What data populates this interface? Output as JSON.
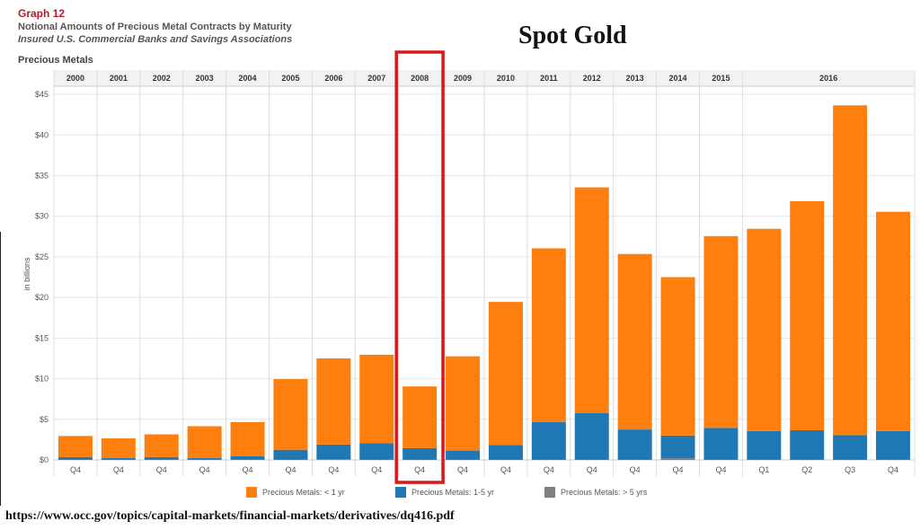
{
  "header": {
    "graph_label": "Graph 12",
    "title": "Notional Amounts of Precious Metal Contracts by Maturity",
    "subtitle": "Insured U.S. Commercial Banks and Savings Associations",
    "section_label": "Precious Metals",
    "overlay_title": "Spot Gold"
  },
  "footer": {
    "source_url": "https://www.occ.gov/topics/capital-markets/financial-markets/derivatives/dq416.pdf"
  },
  "chart_data": {
    "type": "bar",
    "stacked": true,
    "ylabel": "in billions",
    "ylim": [
      0,
      46
    ],
    "yticks": [
      "$0",
      "$5",
      "$10",
      "$15",
      "$20",
      "$25",
      "$30",
      "$35",
      "$40",
      "$45"
    ],
    "ytick_values": [
      0,
      5,
      10,
      15,
      20,
      25,
      30,
      35,
      40,
      45
    ],
    "grid": true,
    "legend_position": "bottom",
    "year_groups": [
      {
        "label": "2000",
        "span": 1
      },
      {
        "label": "2001",
        "span": 1
      },
      {
        "label": "2002",
        "span": 1
      },
      {
        "label": "2003",
        "span": 1
      },
      {
        "label": "2004",
        "span": 1
      },
      {
        "label": "2005",
        "span": 1
      },
      {
        "label": "2006",
        "span": 1
      },
      {
        "label": "2007",
        "span": 1
      },
      {
        "label": "2008",
        "span": 1
      },
      {
        "label": "2009",
        "span": 1
      },
      {
        "label": "2010",
        "span": 1
      },
      {
        "label": "2011",
        "span": 1
      },
      {
        "label": "2012",
        "span": 1
      },
      {
        "label": "2013",
        "span": 1
      },
      {
        "label": "2014",
        "span": 1
      },
      {
        "label": "2015",
        "span": 1
      },
      {
        "label": "2016",
        "span": 4
      }
    ],
    "categories": [
      "Q4",
      "Q4",
      "Q4",
      "Q4",
      "Q4",
      "Q4",
      "Q4",
      "Q4",
      "Q4",
      "Q4",
      "Q4",
      "Q4",
      "Q4",
      "Q4",
      "Q4",
      "Q4",
      "Q1",
      "Q2",
      "Q3",
      "Q4"
    ],
    "series": [
      {
        "name": "Precious Metals: > 5 yrs",
        "color": "#7f7f7f",
        "values": [
          0.05,
          0.05,
          0.05,
          0.05,
          0.05,
          0.05,
          0.1,
          0.05,
          0.05,
          0.05,
          0.05,
          0.05,
          0.05,
          0.05,
          0.2,
          0.05,
          0.05,
          0.05,
          0.05,
          0.05
        ]
      },
      {
        "name": "Precious Metals: 1-5 yr",
        "color": "#1f77b4",
        "values": [
          0.3,
          0.2,
          0.3,
          0.2,
          0.4,
          1.2,
          1.8,
          2.0,
          1.4,
          1.1,
          1.8,
          4.6,
          5.7,
          3.7,
          2.8,
          3.9,
          3.5,
          3.6,
          3.0,
          3.5
        ]
      },
      {
        "name": "Precious Metals: < 1 yr",
        "color": "#ff7f0e",
        "values": [
          2.6,
          2.4,
          2.8,
          3.9,
          4.2,
          8.7,
          10.6,
          10.9,
          7.6,
          11.6,
          17.6,
          21.4,
          27.8,
          21.6,
          19.5,
          23.6,
          24.9,
          28.2,
          40.6,
          27.0
        ]
      }
    ],
    "legend_order": [
      "Precious Metals: < 1 yr",
      "Precious Metals: 1-5 yr",
      "Precious Metals: > 5 yrs"
    ],
    "highlight": {
      "label": "2008",
      "color": "#d7191c"
    }
  }
}
